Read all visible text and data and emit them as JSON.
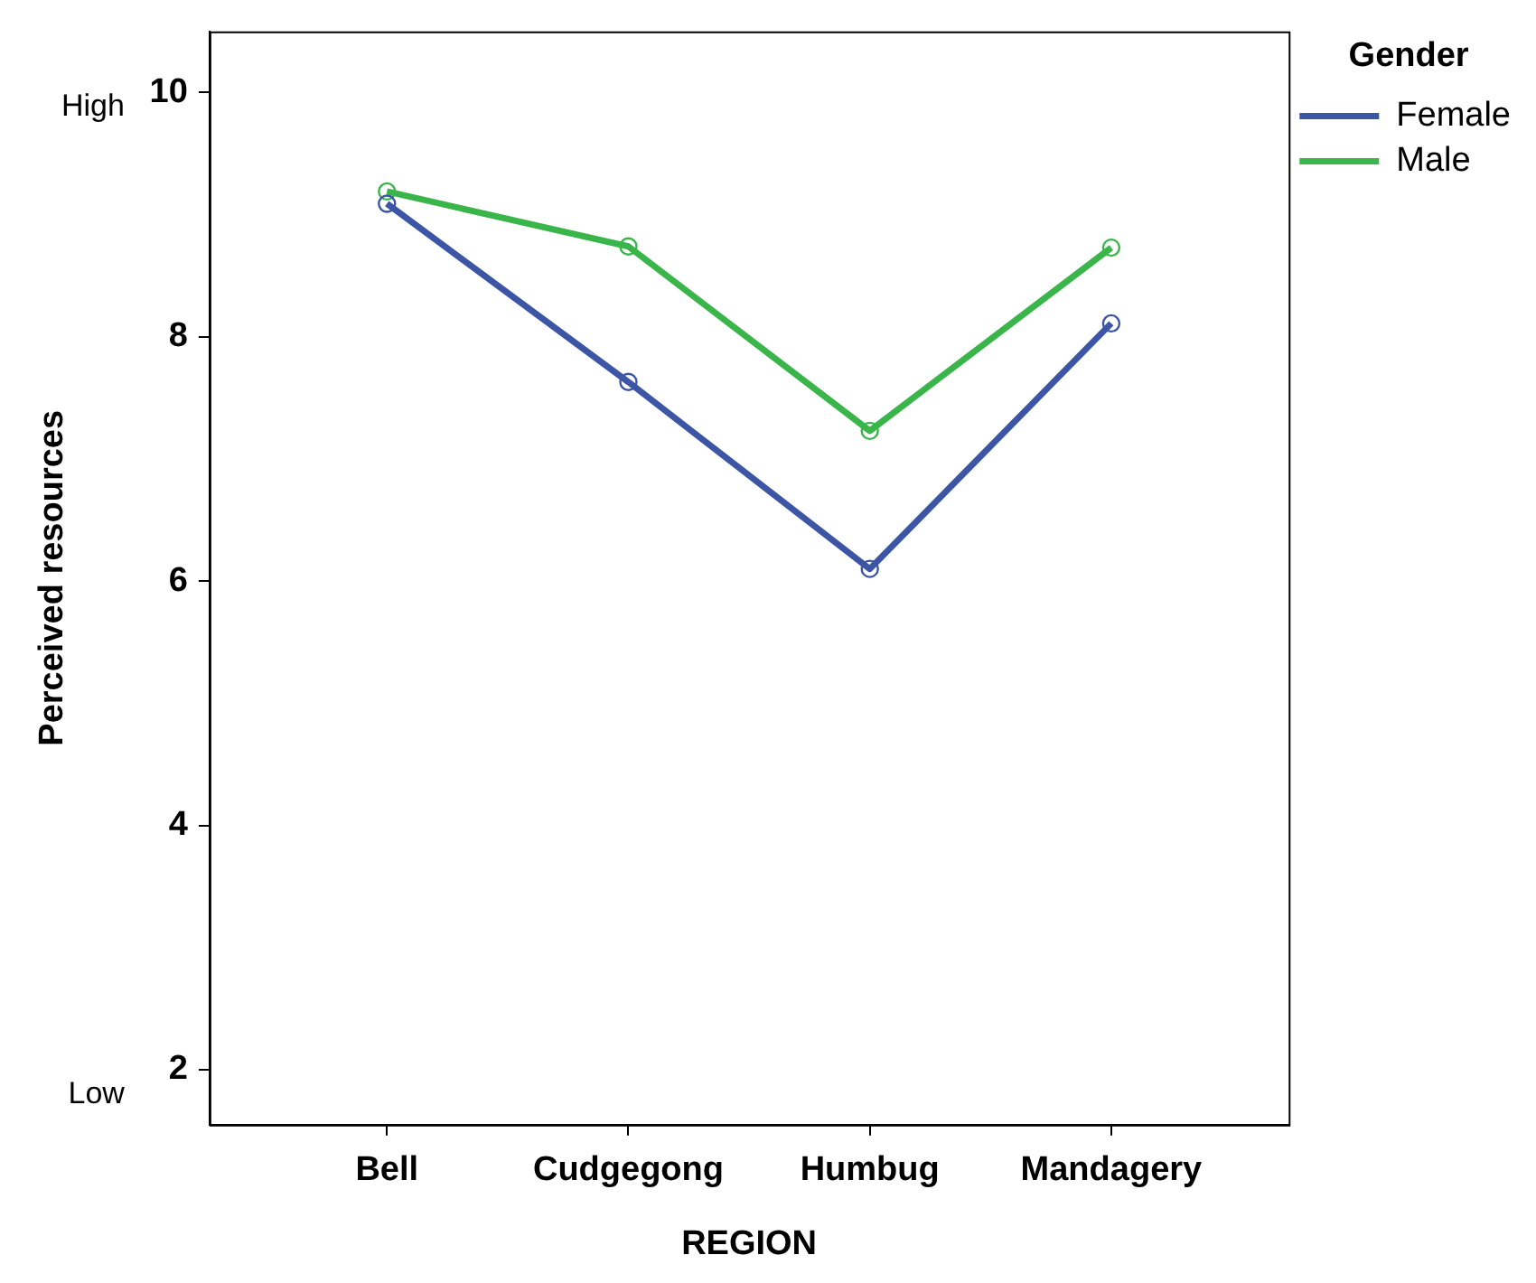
{
  "chart_data": {
    "type": "line",
    "xlabel": "REGION",
    "ylabel": "Perceived resources",
    "legend_title": "Gender",
    "legend": "top right",
    "marker": "circle",
    "line_style": "solid",
    "grid": false,
    "categories": [
      "Bell",
      "Cudgegong",
      "Humbug",
      "Mandagery"
    ],
    "series": [
      {
        "name": "Female",
        "color": "#3d55a5",
        "values": [
          9.09,
          7.63,
          6.1,
          8.11
        ]
      },
      {
        "name": "Male",
        "color": "#3ab54a",
        "values": [
          9.19,
          8.74,
          7.23,
          8.73
        ]
      }
    ],
    "ylim": [
      1.55,
      10.5
    ],
    "yticks": [
      2,
      4,
      6,
      8,
      10
    ],
    "annotations": [
      "High",
      "Low"
    ]
  }
}
